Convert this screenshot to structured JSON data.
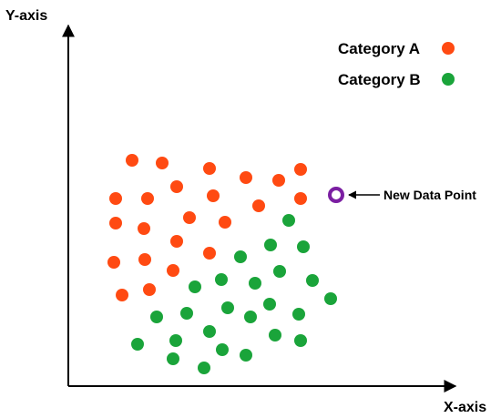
{
  "chart_data": {
    "type": "scatter",
    "xlabel": "X-axis",
    "ylabel": "Y-axis",
    "grid": false,
    "legend": "top-right",
    "colors": {
      "category_a": "#ff4a12",
      "category_b": "#1aa43a",
      "new_point": "#7b1fa2"
    },
    "series": [
      {
        "name": "Category A",
        "points": [
          [
            145,
            176
          ],
          [
            178,
            179
          ],
          [
            230,
            185
          ],
          [
            270,
            195
          ],
          [
            306,
            198
          ],
          [
            330,
            186
          ],
          [
            127,
            218
          ],
          [
            162,
            218
          ],
          [
            194,
            205
          ],
          [
            234,
            215
          ],
          [
            284,
            226
          ],
          [
            330,
            218
          ],
          [
            127,
            245
          ],
          [
            158,
            251
          ],
          [
            208,
            239
          ],
          [
            247,
            244
          ],
          [
            194,
            265
          ],
          [
            230,
            278
          ],
          [
            125,
            288
          ],
          [
            159,
            285
          ],
          [
            190,
            297
          ],
          [
            134,
            324
          ],
          [
            164,
            318
          ]
        ]
      },
      {
        "name": "Category B",
        "points": [
          [
            317,
            242
          ],
          [
            297,
            269
          ],
          [
            333,
            271
          ],
          [
            264,
            282
          ],
          [
            307,
            298
          ],
          [
            243,
            307
          ],
          [
            280,
            311
          ],
          [
            214,
            315
          ],
          [
            343,
            308
          ],
          [
            363,
            328
          ],
          [
            250,
            338
          ],
          [
            296,
            334
          ],
          [
            328,
            345
          ],
          [
            275,
            348
          ],
          [
            205,
            344
          ],
          [
            172,
            348
          ],
          [
            230,
            364
          ],
          [
            302,
            368
          ],
          [
            330,
            374
          ],
          [
            151,
            378
          ],
          [
            193,
            374
          ],
          [
            244,
            384
          ],
          [
            270,
            390
          ],
          [
            190,
            394
          ],
          [
            224,
            404
          ]
        ]
      }
    ],
    "annotation": {
      "label": "New Data Point",
      "point": [
        369,
        214
      ]
    }
  }
}
